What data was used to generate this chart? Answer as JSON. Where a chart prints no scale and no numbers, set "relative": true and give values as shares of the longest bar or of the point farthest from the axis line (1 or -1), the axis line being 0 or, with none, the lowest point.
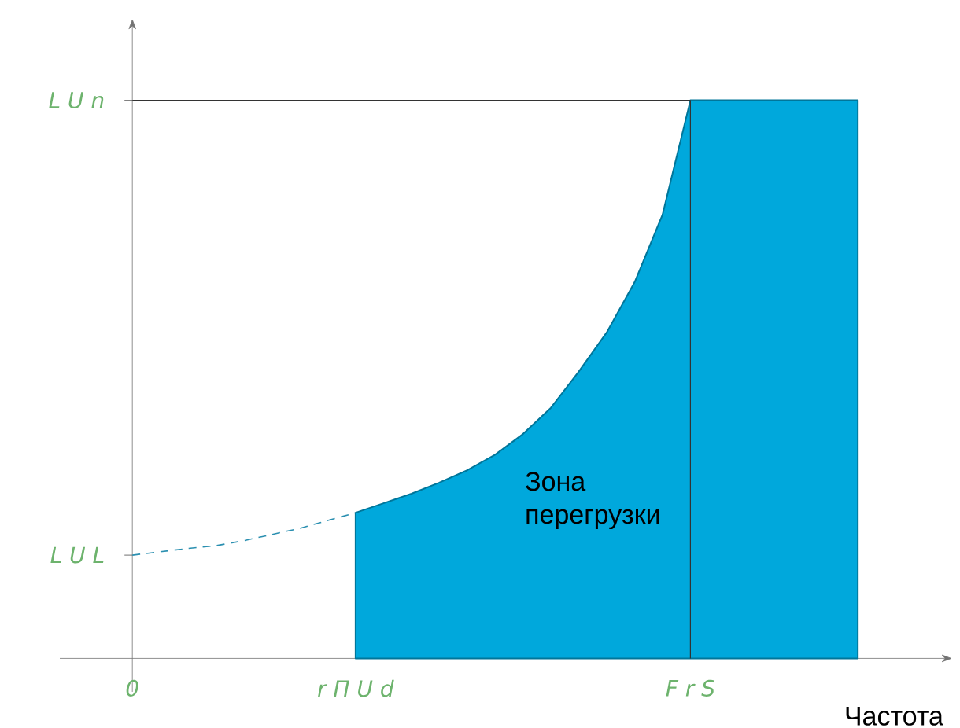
{
  "chart_data": {
    "type": "area",
    "relative": true,
    "xlabel": "Частота",
    "categories": [
      "0",
      null,
      null,
      null,
      null,
      null,
      null,
      null,
      "r Π U d",
      null,
      null,
      null,
      null,
      null,
      null,
      null,
      null,
      null,
      null,
      null,
      "F r S",
      null,
      null,
      null,
      null,
      null,
      null
    ],
    "series": [
      {
        "type": "line",
        "line_style": "dashed",
        "color": "#2a8fb0",
        "values": [
          0.185,
          0.191,
          0.197,
          0.202,
          0.211,
          0.222,
          0.233,
          0.247,
          0.261,
          null,
          null,
          null,
          null,
          null,
          null,
          null,
          null,
          null,
          null,
          null,
          null,
          null,
          null,
          null,
          null,
          null,
          null
        ]
      },
      {
        "color": "#00a8dc",
        "values": [
          null,
          null,
          null,
          null,
          null,
          null,
          null,
          null,
          0.261,
          0.278,
          0.295,
          0.315,
          0.337,
          0.365,
          0.402,
          0.449,
          0.514,
          0.584,
          0.674,
          0.795,
          1,
          1,
          1,
          1,
          1,
          1,
          1
        ]
      }
    ],
    "ref_lines": [
      {
        "axis": "y",
        "value": 1,
        "label": "L U n",
        "color": "#333333"
      },
      {
        "axis": "y",
        "value": 0.185,
        "label": "L U L"
      },
      {
        "axis": "x",
        "value": "F r S",
        "color": "#333333"
      }
    ],
    "annotations": [
      "Зона перегрузки"
    ]
  }
}
